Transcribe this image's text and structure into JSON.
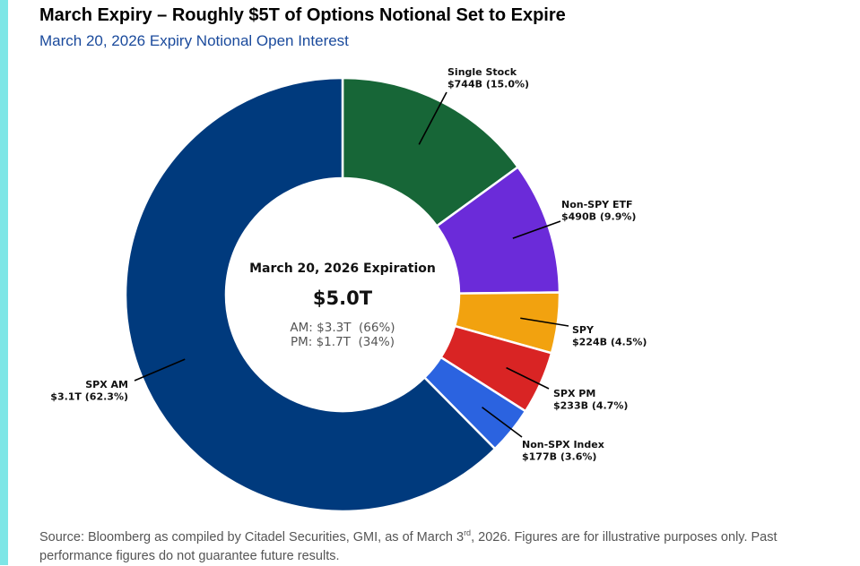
{
  "colors": {
    "accent_bar": "#7ee6e6",
    "subtitle": "#1a4a9c"
  },
  "header": {
    "title": "March Expiry – Roughly $5T of Options Notional Set to Expire",
    "subtitle": "March 20, 2026 Expiry Notional Open Interest"
  },
  "center": {
    "heading": "March 20, 2026 Expiration",
    "total": "$5.0T",
    "am_line": "AM: $3.3T  (66%)",
    "pm_line": "PM: $1.7T  (34%)"
  },
  "chart_data": {
    "type": "pie",
    "style": "donut",
    "unit": "USD billions",
    "total_label": "$5.0T",
    "slices": [
      {
        "name": "Single Stock",
        "value": 744,
        "percent": 15.0,
        "value_label": "$744B (15.0%)",
        "color": "#176637"
      },
      {
        "name": "Non-SPY ETF",
        "value": 490,
        "percent": 9.9,
        "value_label": "$490B (9.9%)",
        "color": "#6b2bd9"
      },
      {
        "name": "SPY",
        "value": 224,
        "percent": 4.5,
        "value_label": "$224B (4.5%)",
        "color": "#f2a20f"
      },
      {
        "name": "SPX PM",
        "value": 233,
        "percent": 4.7,
        "value_label": "$233B (4.7%)",
        "color": "#d92424"
      },
      {
        "name": "Non-SPX Index",
        "value": 177,
        "percent": 3.6,
        "value_label": "$177B (3.6%)",
        "color": "#2b63e0"
      },
      {
        "name": "SPX AM",
        "value": 3100,
        "percent": 62.3,
        "value_label": "$3.1T (62.3%)",
        "color": "#003a7d"
      }
    ]
  },
  "footnote": {
    "text_before": "Source: Bloomberg as compiled by Citadel Securities, GMI, as of March 3",
    "superscript": "rd",
    "text_after": ", 2026. Figures are for illustrative purposes only. Past performance figures do not guarantee future results."
  }
}
